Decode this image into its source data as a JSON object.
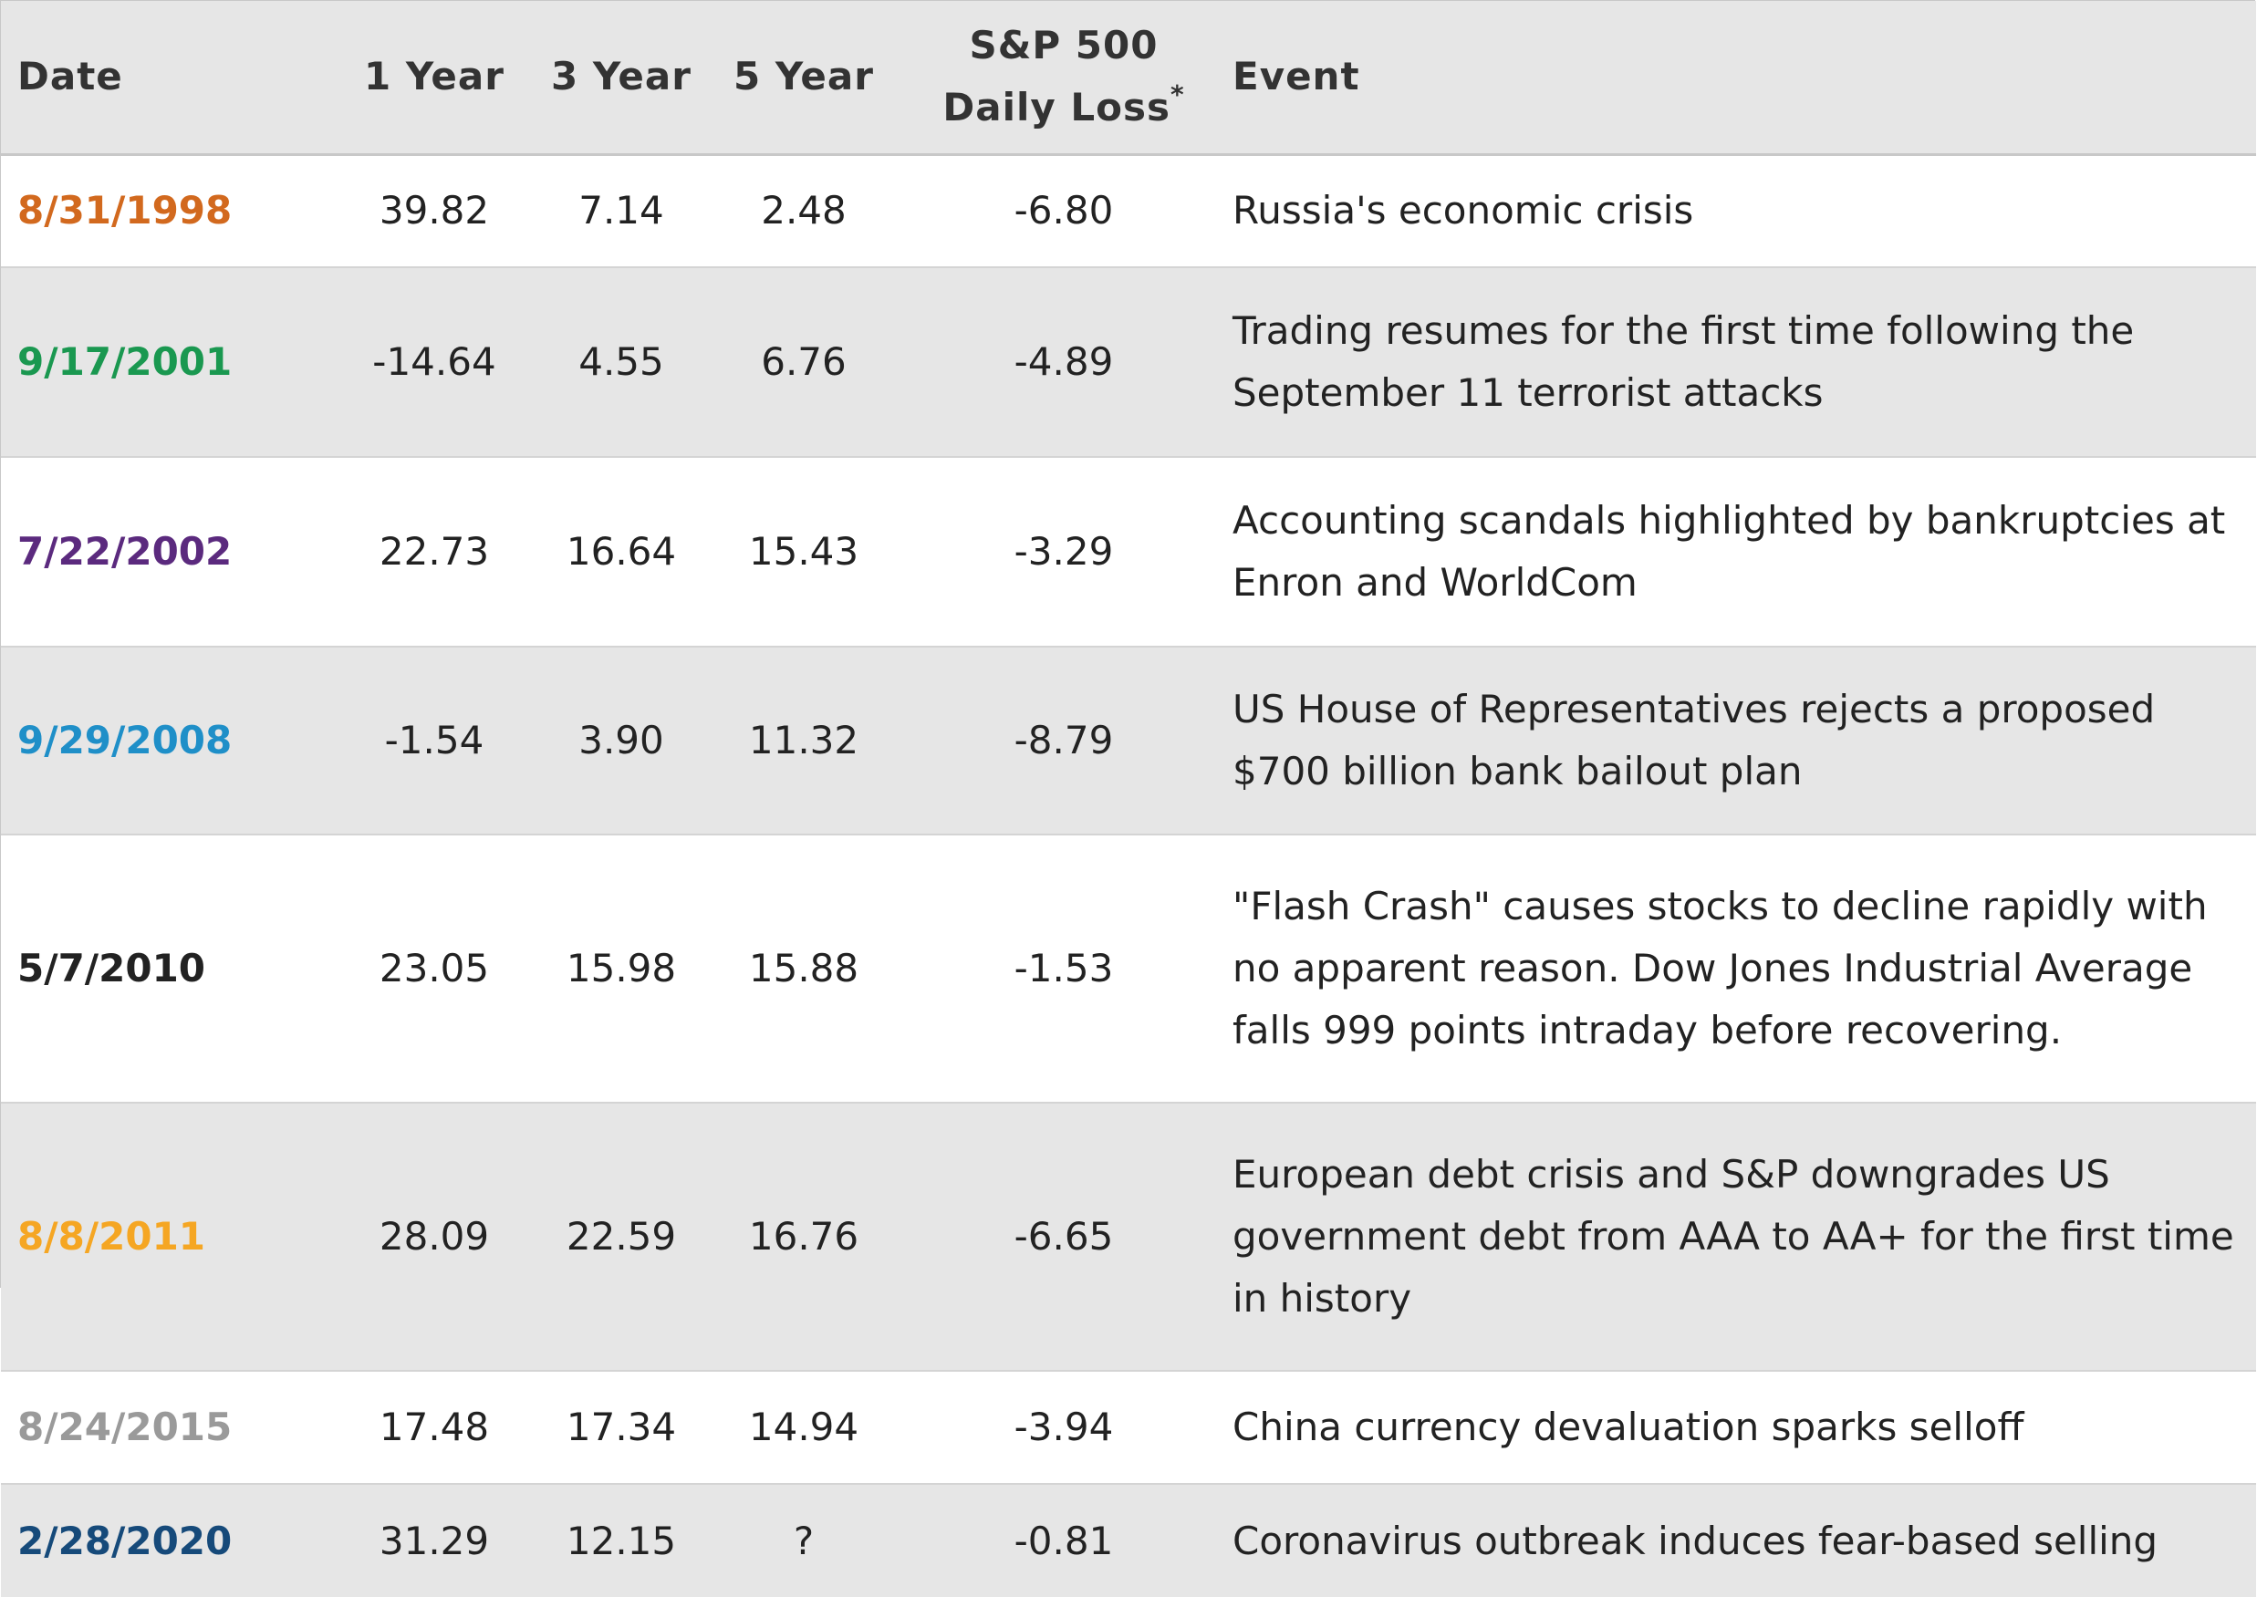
{
  "header": {
    "date": "Date",
    "one_year": "1 Year",
    "three_year": "3 Year",
    "five_year": "5 Year",
    "sp_line1": "S&P 500",
    "sp_line2": "Daily Loss",
    "sp_mark": "*",
    "event": "Event"
  },
  "rows": [
    {
      "date": "8/31/1998",
      "color": "#d2691e",
      "one_year": "39.82",
      "three_year": "7.14",
      "five_year": "2.48",
      "sp_loss": "-6.80",
      "event": "Russia's economic crisis"
    },
    {
      "date": "9/17/2001",
      "color": "#1a9850",
      "one_year": "-14.64",
      "three_year": "4.55",
      "five_year": "6.76",
      "sp_loss": "-4.89",
      "event": "Trading resumes for the first time following the September 11 terrorist attacks"
    },
    {
      "date": "7/22/2002",
      "color": "#5b2a7e",
      "one_year": "22.73",
      "three_year": "16.64",
      "five_year": "15.43",
      "sp_loss": "-3.29",
      "event": "Accounting scandals highlighted by bankruptcies at Enron and WorldCom"
    },
    {
      "date": "9/29/2008",
      "color": "#1f8fc8",
      "one_year": "-1.54",
      "three_year": "3.90",
      "five_year": "11.32",
      "sp_loss": "-8.79",
      "event": "US House of Representatives rejects a proposed $700 billion bank bailout plan"
    },
    {
      "date": "5/7/2010",
      "color": "#222222",
      "one_year": "23.05",
      "three_year": "15.98",
      "five_year": "15.88",
      "sp_loss": "-1.53",
      "event": "\"Flash Crash\" causes stocks to decline rapidly with no apparent reason. Dow Jones Industrial Average falls 999 points intraday before recovering."
    },
    {
      "date": "8/8/2011",
      "color": "#f5a623",
      "one_year": "28.09",
      "three_year": "22.59",
      "five_year": "16.76",
      "sp_loss": "-6.65",
      "event": "European debt crisis and S&P downgrades US government debt from AAA to AA+ for the first time in history"
    },
    {
      "date": "8/24/2015",
      "color": "#9a9a9a",
      "one_year": "17.48",
      "three_year": "17.34",
      "five_year": "14.94",
      "sp_loss": "-3.94",
      "event": "China currency devaluation sparks selloff"
    },
    {
      "date": "2/28/2020",
      "color": "#164a7a",
      "one_year": "31.29",
      "three_year": "12.15",
      "five_year": "?",
      "sp_loss": "-0.81",
      "event": "Coronavirus outbreak induces fear-based selling"
    }
  ]
}
